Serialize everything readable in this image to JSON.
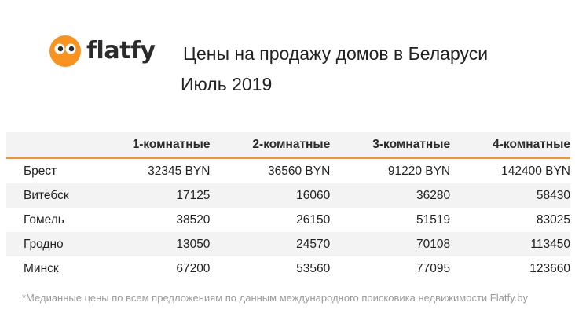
{
  "brand": {
    "name": "flatfy",
    "logo_color": "#f7931e"
  },
  "chart_data": {
    "type": "table",
    "title": "Цены на продажу домов в Беларуси",
    "subtitle": "Июль 2019",
    "columns": [
      "",
      "1-комнатные",
      "2-комнатные",
      "3-комнатные",
      "4-комнатные"
    ],
    "rows": [
      {
        "city": "Брест",
        "values": [
          "32345 BYN",
          "36560 BYN",
          "91220 BYN",
          "142400 BYN"
        ]
      },
      {
        "city": "Витебск",
        "values": [
          "17125",
          "16060",
          "36280",
          "58430"
        ]
      },
      {
        "city": "Гомель",
        "values": [
          "38520",
          "26150",
          "51519",
          "83025"
        ]
      },
      {
        "city": "Гродно",
        "values": [
          "13050",
          "24570",
          "70108",
          "113450"
        ]
      },
      {
        "city": "Минск",
        "values": [
          "67200",
          "53560",
          "77095",
          "123660"
        ]
      }
    ],
    "accent_color": "#f7931e"
  },
  "footnote": "*Медианные цены по всем предложениям по данным международного поисковика недвижимости Flatfy.by"
}
